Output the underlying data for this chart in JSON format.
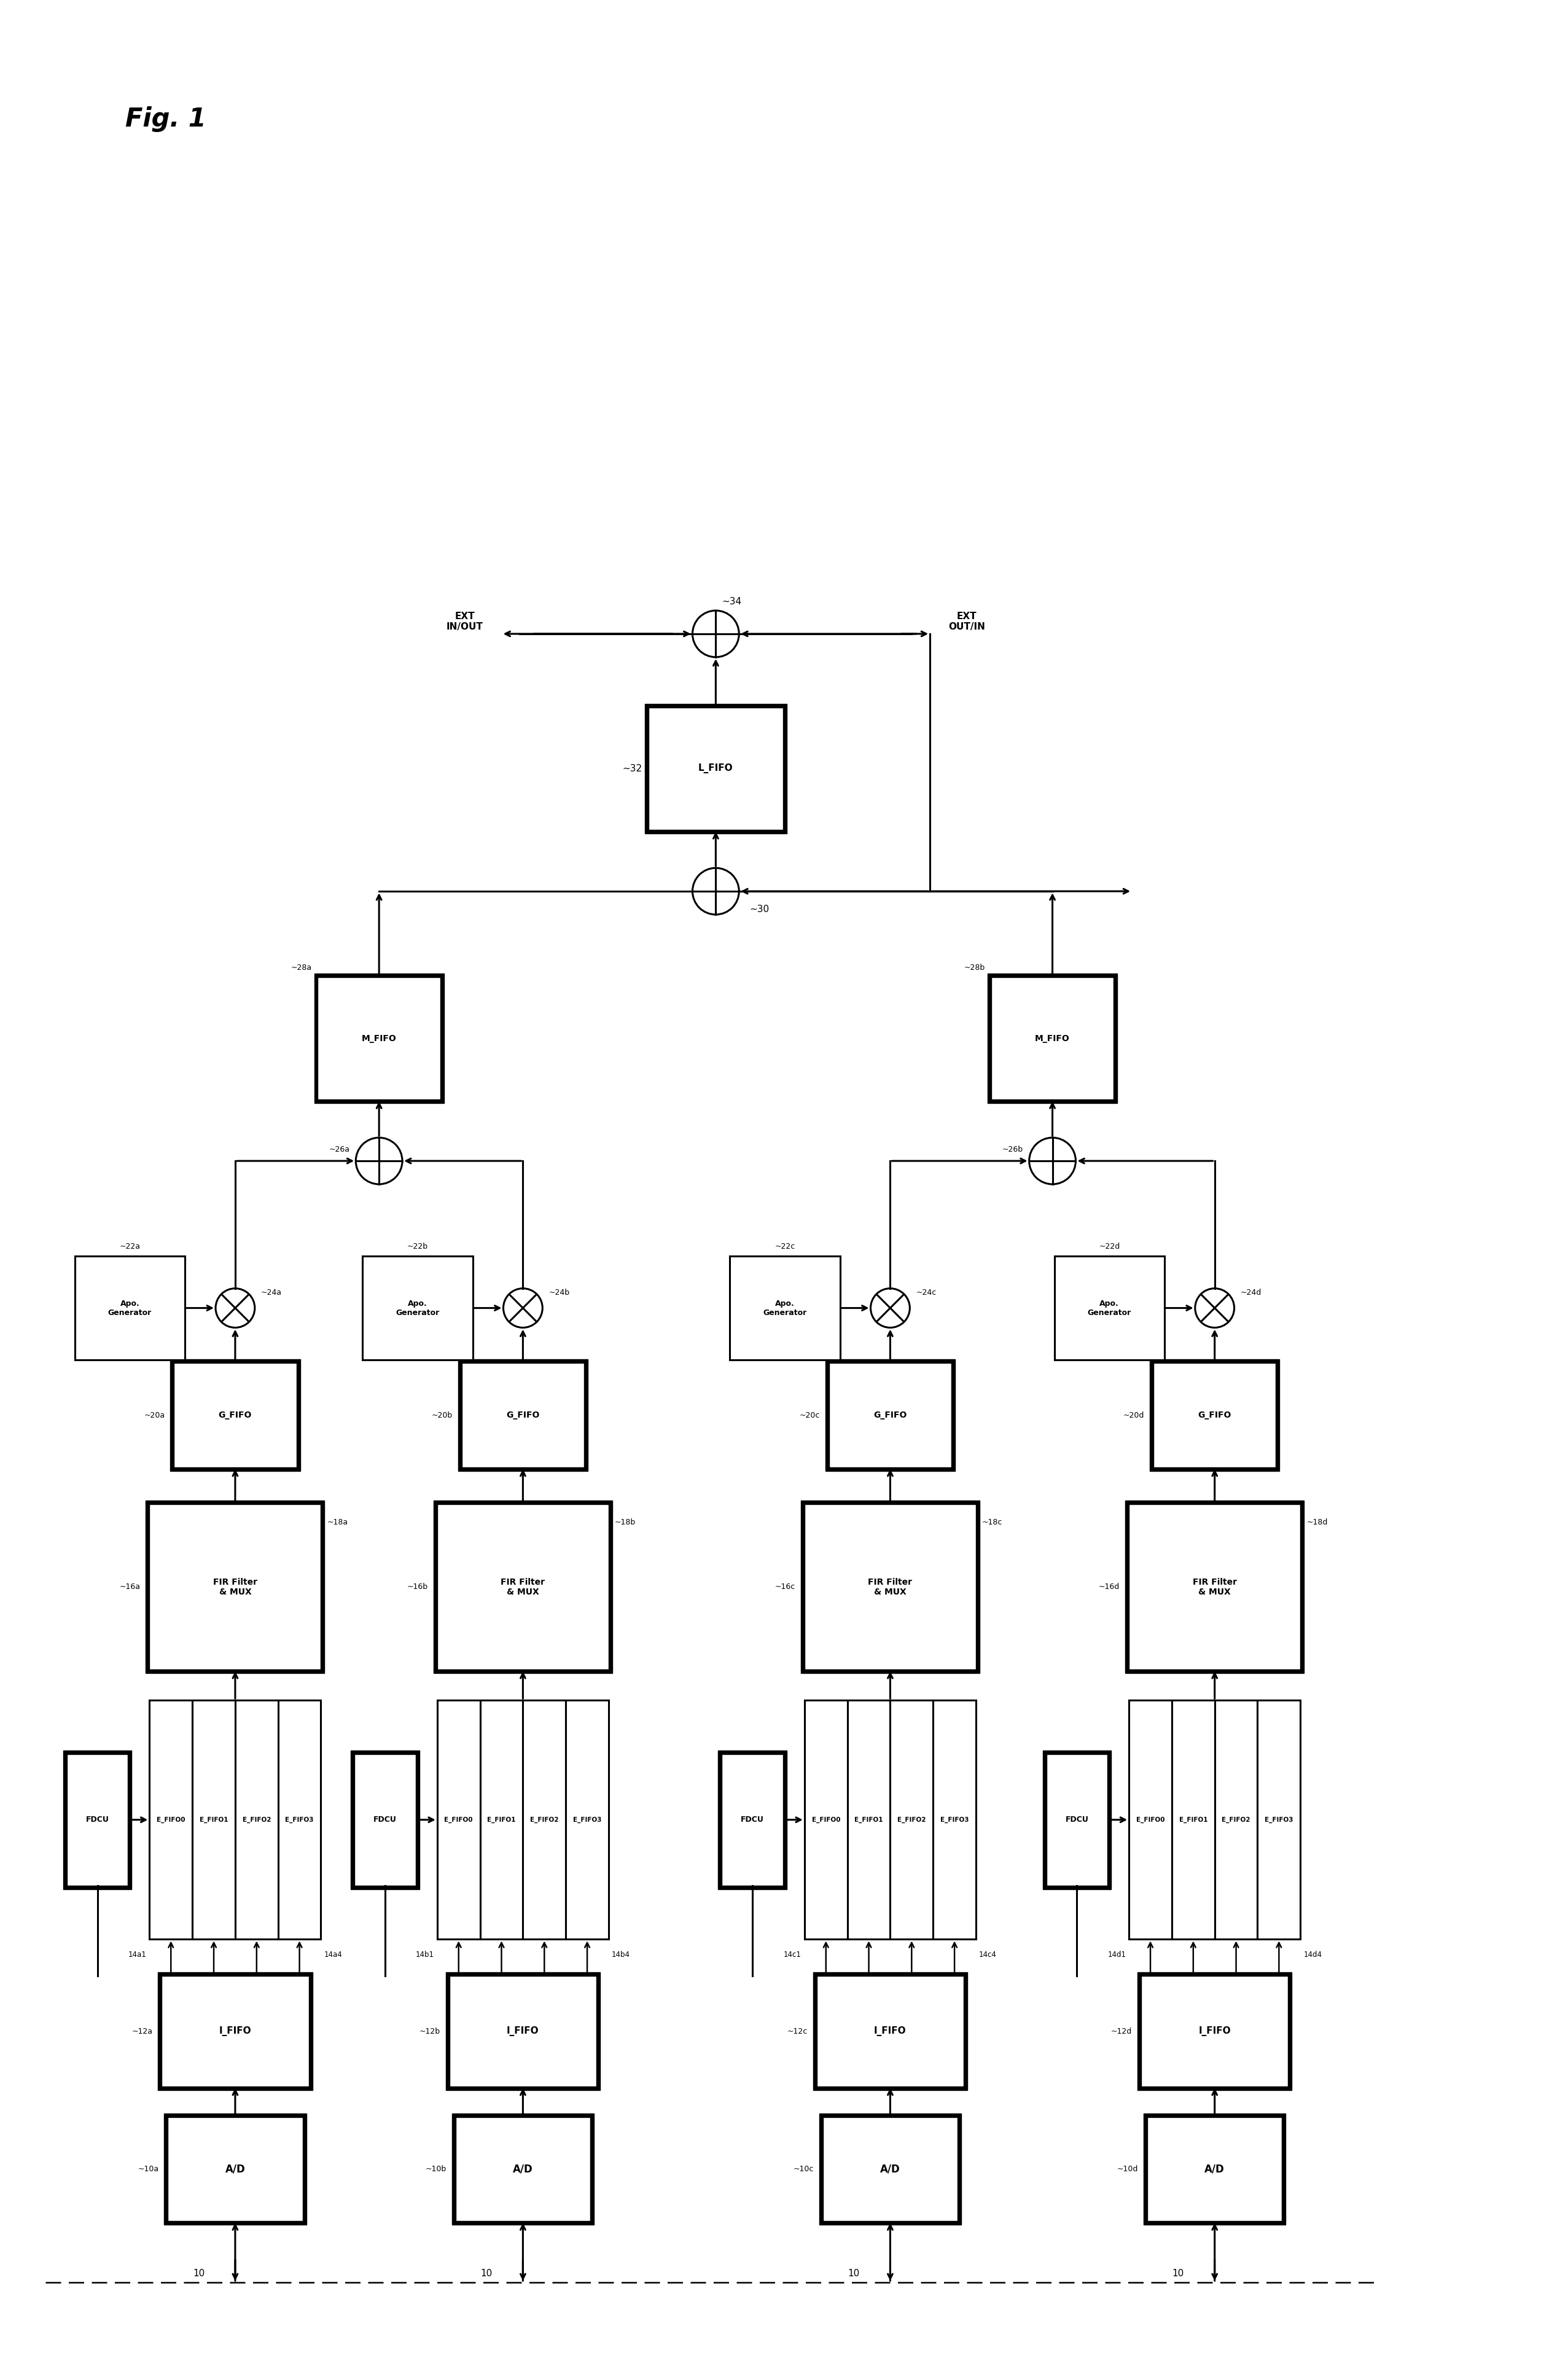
{
  "fig_title": "Fig. 1",
  "background": "#ffffff",
  "lw": 2.2,
  "bold_lw": 5.0,
  "arrow_lw": 2.2,
  "channel_labels": [
    "10a",
    "10b",
    "10c",
    "10d"
  ],
  "ad_labels": [
    "A/D",
    "A/D",
    "A/D",
    "A/D"
  ],
  "ififo_nums": [
    "12a",
    "12b",
    "12c",
    "12d"
  ],
  "efifo_labels": [
    [
      "E_FIFO0",
      "E_FIFO1",
      "E_FIFO2",
      "E_FIFO3"
    ],
    [
      "E_FIFO0",
      "E_FIFO1",
      "E_FIFO2",
      "E_FIFO3"
    ],
    [
      "E_FIFO0",
      "E_FIFO1",
      "E_FIFO2",
      "E_FIFO3"
    ],
    [
      "E_FIFO0",
      "E_FIFO1",
      "E_FIFO2",
      "E_FIFO3"
    ]
  ],
  "efifo_left_nums": [
    "14a1",
    "14b1",
    "14c1",
    "14d1"
  ],
  "efifo_right_nums": [
    "14a4",
    "14b4",
    "14c4",
    "14d4"
  ],
  "fdcu_label": "FDCU",
  "fir_text": "FIR Filter\n& MUX",
  "fir_nums": [
    "16a",
    "16b",
    "16c",
    "16d"
  ],
  "fir_out_nums": [
    "18a",
    "18b",
    "18c",
    "18d"
  ],
  "gfifo_nums": [
    "20a",
    "20b",
    "20c",
    "20d"
  ],
  "apo_nums": [
    "22a",
    "22b",
    "22c",
    "22d"
  ],
  "mult_nums": [
    "24a",
    "24b",
    "24c",
    "24d"
  ],
  "adder_nums": [
    "26a",
    "26b"
  ],
  "mfifo_nums": [
    "28a",
    "28b"
  ],
  "sum30_num": "30",
  "lfifo_label": "L_FIFO",
  "lfifo_num": "32",
  "sum34_num": "34",
  "ext_in_out": "EXT\nIN/OUT",
  "ext_out_in": "EXT\nOUT/IN",
  "input_num": "10"
}
